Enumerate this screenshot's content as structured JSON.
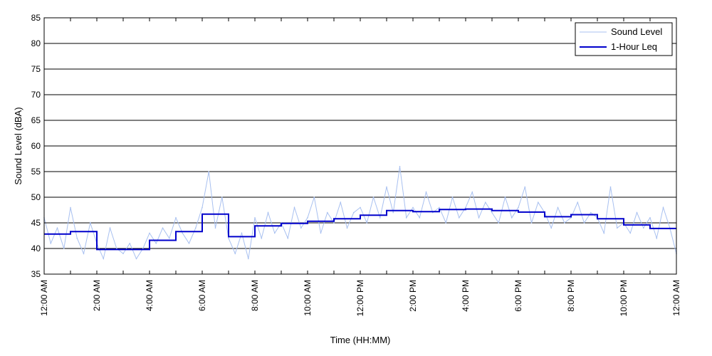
{
  "chart_data": {
    "type": "line",
    "xlabel": "Time (HH:MM)",
    "ylabel": "Sound Level (dBA)",
    "ylim": [
      35,
      85
    ],
    "yticks": [
      35,
      40,
      45,
      50,
      55,
      60,
      65,
      70,
      75,
      80,
      85
    ],
    "xlim": [
      0,
      24
    ],
    "xtick_hours": [
      0,
      2,
      4,
      6,
      8,
      10,
      12,
      14,
      16,
      18,
      20,
      22,
      24
    ],
    "xtick_labels": [
      "12:00 AM",
      "2:00 AM",
      "4:00 AM",
      "6:00 AM",
      "8:00 AM",
      "10:00 AM",
      "12:00 PM",
      "2:00 PM",
      "4:00 PM",
      "6:00 PM",
      "8:00 PM",
      "10:00 PM",
      "12:00 AM"
    ],
    "grid": "horizontal",
    "legend_position": "top-right",
    "series": [
      {
        "name": "Sound Level",
        "color": "#a8c0f0",
        "style": "thin-line",
        "x_hours": [
          0.0,
          0.25,
          0.5,
          0.75,
          1.0,
          1.25,
          1.5,
          1.75,
          2.0,
          2.25,
          2.5,
          2.75,
          3.0,
          3.25,
          3.5,
          3.75,
          4.0,
          4.25,
          4.5,
          4.75,
          5.0,
          5.25,
          5.5,
          5.75,
          6.0,
          6.25,
          6.5,
          6.75,
          7.0,
          7.25,
          7.5,
          7.75,
          8.0,
          8.25,
          8.5,
          8.75,
          9.0,
          9.25,
          9.5,
          9.75,
          10.0,
          10.25,
          10.5,
          10.75,
          11.0,
          11.25,
          11.5,
          11.75,
          12.0,
          12.25,
          12.5,
          12.75,
          13.0,
          13.25,
          13.5,
          13.75,
          14.0,
          14.25,
          14.5,
          14.75,
          15.0,
          15.25,
          15.5,
          15.75,
          16.0,
          16.25,
          16.5,
          16.75,
          17.0,
          17.25,
          17.5,
          17.75,
          18.0,
          18.25,
          18.5,
          18.75,
          19.0,
          19.25,
          19.5,
          19.75,
          20.0,
          20.25,
          20.5,
          20.75,
          21.0,
          21.25,
          21.5,
          21.75,
          22.0,
          22.25,
          22.5,
          22.75,
          23.0,
          23.25,
          23.5,
          23.75,
          24.0
        ],
        "values": [
          46,
          41,
          44,
          40,
          48,
          42,
          39,
          45,
          41,
          38,
          44,
          40,
          39,
          41,
          38,
          40,
          43,
          41,
          44,
          42,
          46,
          43,
          41,
          44,
          48,
          55,
          44,
          50,
          42,
          39,
          43,
          38,
          46,
          42,
          47,
          43,
          45,
          42,
          48,
          44,
          46,
          50,
          43,
          47,
          45,
          49,
          44,
          47,
          48,
          45,
          50,
          46,
          52,
          47,
          56,
          46,
          48,
          46,
          51,
          47,
          48,
          45,
          50,
          46,
          48,
          51,
          46,
          49,
          47,
          45,
          50,
          46,
          48,
          52,
          45,
          49,
          47,
          44,
          48,
          45,
          46,
          49,
          45,
          47,
          46,
          43,
          52,
          44,
          45,
          43,
          47,
          44,
          46,
          42,
          48,
          44,
          39
        ]
      },
      {
        "name": "1-Hour Leq",
        "color": "#0000cc",
        "style": "step",
        "x_hours": [
          0,
          1,
          2,
          3,
          4,
          5,
          6,
          7,
          8,
          9,
          10,
          11,
          12,
          13,
          14,
          15,
          16,
          17,
          18,
          19,
          20,
          21,
          22,
          23
        ],
        "values": [
          42.8,
          43.3,
          39.8,
          39.8,
          41.6,
          43.3,
          46.7,
          42.3,
          44.4,
          44.9,
          45.3,
          45.8,
          46.5,
          47.4,
          47.2,
          47.6,
          47.7,
          47.4,
          47.1,
          46.2,
          46.6,
          45.8,
          44.6,
          43.9
        ]
      }
    ]
  }
}
